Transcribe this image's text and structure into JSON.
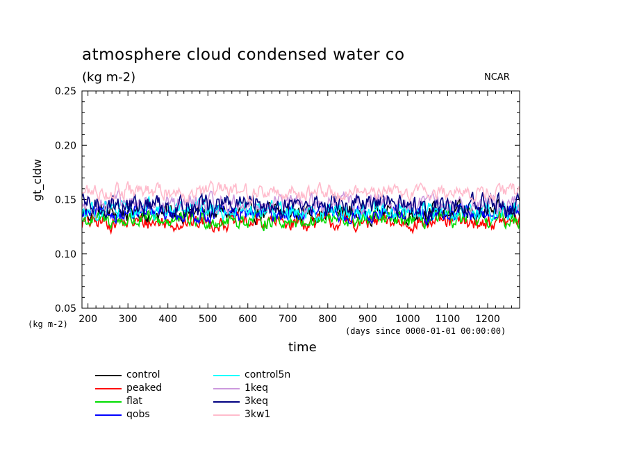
{
  "chart_data": {
    "type": "line",
    "title": "atmosphere cloud condensed water co",
    "subtitle": "(kg m-2)",
    "source": "NCAR",
    "xlabel": "time",
    "x_units": "(days since 0000-01-01 00:00:00)",
    "ylabel": "gt_cldw",
    "y_units": "(kg m-2)",
    "xlim": [
      185,
      1280
    ],
    "ylim": [
      0.05,
      0.25
    ],
    "x_ticks": [
      200,
      300,
      400,
      500,
      600,
      700,
      800,
      900,
      1000,
      1100,
      1200
    ],
    "y_ticks": [
      "0.05",
      "0.10",
      "0.15",
      "0.20",
      "0.25"
    ],
    "legend_placement": "below",
    "series": [
      {
        "name": "control",
        "color": "#000000",
        "mean": 0.138,
        "amp": 0.007,
        "min": 0.125,
        "max": 0.15
      },
      {
        "name": "peaked",
        "color": "#ff0000",
        "mean": 0.129,
        "amp": 0.006,
        "min": 0.116,
        "max": 0.142
      },
      {
        "name": "flat",
        "color": "#00dd00",
        "mean": 0.131,
        "amp": 0.006,
        "min": 0.116,
        "max": 0.145
      },
      {
        "name": "qobs",
        "color": "#0000ff",
        "mean": 0.137,
        "amp": 0.006,
        "min": 0.125,
        "max": 0.15
      },
      {
        "name": "control5n",
        "color": "#00ffff",
        "mean": 0.14,
        "amp": 0.007,
        "min": 0.122,
        "max": 0.16
      },
      {
        "name": "1keq",
        "color": "#cc99dd",
        "mean": 0.146,
        "amp": 0.007,
        "min": 0.13,
        "max": 0.162
      },
      {
        "name": "3keq",
        "color": "#000080",
        "mean": 0.145,
        "amp": 0.008,
        "min": 0.122,
        "max": 0.167
      },
      {
        "name": "3kw1",
        "color": "#ffbbcc",
        "mean": 0.157,
        "amp": 0.006,
        "min": 0.143,
        "max": 0.174
      }
    ]
  }
}
